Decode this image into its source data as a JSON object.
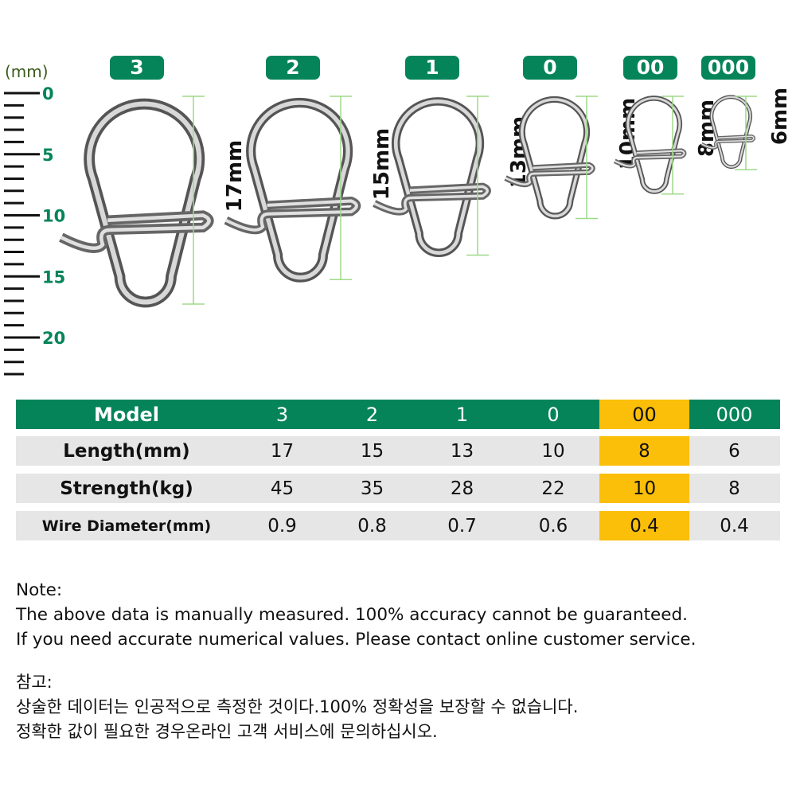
{
  "ruler": {
    "unit_label": "(mm)",
    "tick_labels": [
      "0",
      "5",
      "10",
      "15",
      "20"
    ],
    "max_mm": 23,
    "color": "#05845a"
  },
  "products": [
    {
      "model": "3",
      "length_label": "17mm",
      "length_mm": 17
    },
    {
      "model": "2",
      "length_label": "15mm",
      "length_mm": 15
    },
    {
      "model": "1",
      "length_label": "13mm",
      "length_mm": 13
    },
    {
      "model": "0",
      "length_label": "10mm",
      "length_mm": 10
    },
    {
      "model": "00",
      "length_label": "8mm",
      "length_mm": 8
    },
    {
      "model": "000",
      "length_label": "6mm",
      "length_mm": 6
    }
  ],
  "table": {
    "header": {
      "label": "Model",
      "values": [
        "3",
        "2",
        "1",
        "0",
        "00",
        "000"
      ]
    },
    "rows": [
      {
        "label": "Length(mm)",
        "values": [
          "17",
          "15",
          "13",
          "10",
          "8",
          "6"
        ]
      },
      {
        "label": "Strength(kg)",
        "values": [
          "45",
          "35",
          "28",
          "22",
          "10",
          "8"
        ]
      },
      {
        "label": "Wire Diameter(mm)",
        "values": [
          "0.9",
          "0.8",
          "0.7",
          "0.6",
          "0.4",
          "0.4"
        ]
      }
    ],
    "highlight_column": "00",
    "colors": {
      "header": "#05845a",
      "highlight": "#fbbf0a",
      "row": "#e6e6e6"
    }
  },
  "notes": {
    "title": "Note:",
    "line1": "The above data is manually measured. 100% accuracy cannot be guaranteed.",
    "line2": "If you need accurate numerical values. Please contact online customer service."
  },
  "notes_ko": {
    "title": "참고:",
    "line1": "상술한 데이터는 인공적으로 측정한 것이다.100% 정확성을 보장할 수 없습니다.",
    "line2": "정확한 값이 필요한 경우온라인 고객 서비스에 문의하십시오."
  }
}
